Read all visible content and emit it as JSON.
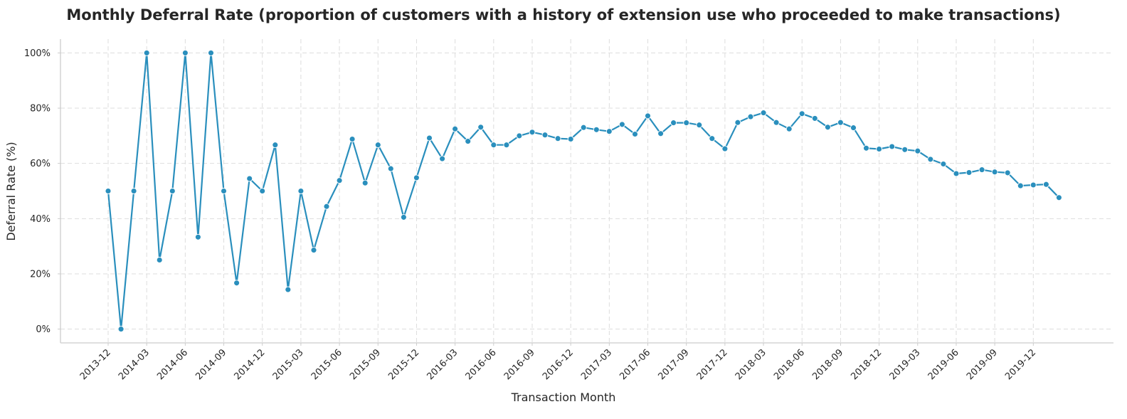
{
  "chart_data": {
    "type": "line",
    "title": "Monthly Deferral Rate (proportion of customers with a history of extension use who proceeded to make transactions)",
    "xlabel": "Transaction Month",
    "ylabel": "Deferral Rate (%)",
    "ylim": [
      -5,
      105
    ],
    "yticks": [
      0,
      20,
      40,
      60,
      80,
      100
    ],
    "ytick_labels": [
      "0%",
      "20%",
      "40%",
      "60%",
      "80%",
      "100%"
    ],
    "xtick_labels": [
      "2013-12",
      "2014-03",
      "2014-06",
      "2014-09",
      "2014-12",
      "2015-03",
      "2015-06",
      "2015-09",
      "2015-12",
      "2016-03",
      "2016-06",
      "2016-09",
      "2016-12",
      "2017-03",
      "2017-06",
      "2017-09",
      "2017-12",
      "2018-03",
      "2018-06",
      "2018-09",
      "2018-12",
      "2019-03",
      "2019-06",
      "2019-09",
      "2019-12"
    ],
    "grid": true,
    "line_color": "#2a8fbd",
    "series": [
      {
        "x": [
          "2013-12",
          "2014-01",
          "2014-02",
          "2014-03",
          "2014-04",
          "2014-05",
          "2014-06",
          "2014-07",
          "2014-08",
          "2014-09",
          "2014-10",
          "2014-11",
          "2014-12",
          "2015-01",
          "2015-02",
          "2015-03",
          "2015-04",
          "2015-05",
          "2015-06",
          "2015-07",
          "2015-08",
          "2015-09",
          "2015-10",
          "2015-11",
          "2015-12",
          "2016-01",
          "2016-02",
          "2016-03",
          "2016-04",
          "2016-05",
          "2016-06",
          "2016-07",
          "2016-08",
          "2016-09",
          "2016-10",
          "2016-11",
          "2016-12",
          "2017-01",
          "2017-02",
          "2017-03",
          "2017-04",
          "2017-05",
          "2017-06",
          "2017-07",
          "2017-08",
          "2017-09",
          "2017-10",
          "2017-11",
          "2017-12",
          "2018-01",
          "2018-02",
          "2018-03",
          "2018-04",
          "2018-05",
          "2018-06",
          "2018-07",
          "2018-08",
          "2018-09",
          "2018-10",
          "2018-11",
          "2018-12",
          "2019-01",
          "2019-02",
          "2019-03",
          "2019-04",
          "2019-05",
          "2019-06",
          "2019-07",
          "2019-08",
          "2019-09",
          "2019-10",
          "2019-11",
          "2019-12",
          "2020-01",
          "2020-02"
        ],
        "values": [
          50,
          0,
          50,
          100,
          25,
          50,
          100,
          33.3,
          100,
          50,
          16.7,
          54.5,
          50,
          66.7,
          14.3,
          50,
          28.6,
          44.4,
          53.8,
          68.8,
          52.9,
          66.7,
          58.1,
          40.5,
          54.8,
          69.2,
          61.7,
          72.5,
          68,
          73.1,
          66.7,
          66.7,
          70,
          71.3,
          70.3,
          69,
          68.8,
          73,
          72.2,
          71.6,
          74.1,
          70.6,
          77.2,
          70.8,
          74.7,
          74.7,
          73.9,
          69,
          65.3,
          74.8,
          76.9,
          78.3,
          74.8,
          72.5,
          78,
          76.3,
          73.1,
          74.8,
          72.9,
          65.5,
          65.2,
          66.1,
          65,
          64.5,
          61.5,
          59.8,
          56.3,
          56.7,
          57.7,
          56.9,
          56.6,
          51.9,
          52.2,
          52.4,
          47.6
        ]
      }
    ]
  }
}
